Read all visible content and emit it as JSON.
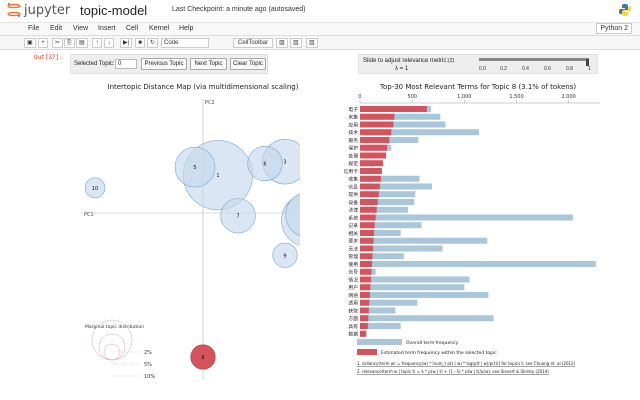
{
  "header": {
    "brand": "jupyter",
    "notebook_title": "topic-model",
    "checkpoint": "Last Checkpoint: a minute ago (autosaved)"
  },
  "menu": {
    "items": [
      "File",
      "Edit",
      "View",
      "Insert",
      "Cell",
      "Kernel",
      "Help"
    ],
    "kernel": "Python 2"
  },
  "toolbar": {
    "icons": [
      "save-icon",
      "add-icon",
      "cut-icon",
      "copy-icon",
      "paste-icon",
      "move-up-icon",
      "move-down-icon",
      "run-icon",
      "stop-icon",
      "restart-icon"
    ],
    "cell_type": "Code",
    "celltoolbar_label": "CellToolbar",
    "extra_icons": [
      "chart-icon",
      "chart-icon",
      "chart-icon"
    ]
  },
  "cell": {
    "prompt": "Out[37]:"
  },
  "controls": {
    "selected_topic_label": "Selected Topic:",
    "selected_topic_value": "0",
    "prev_button": "Previous Topic",
    "next_button": "Next Topic",
    "clear_button": "Clear Topic",
    "slider_label": "Slide to adjust relevance metric:",
    "slider_note": "(2)",
    "lambda_text": "λ = 1",
    "slider_value": 1,
    "slider_ticks": [
      "0.0",
      "0.2",
      "0.4",
      "0.6",
      "0.8",
      "1"
    ]
  },
  "chart_data": [
    {
      "type": "scatter",
      "title": "Intertopic Distance Map (via multidimensional scaling)",
      "xlabel": "PC1",
      "ylabel": "PC2",
      "topics": [
        {
          "id": "1",
          "x": 0.15,
          "y": 0.42,
          "size": 12
        },
        {
          "id": "2",
          "x": 1.05,
          "y": -0.08,
          "size": 7
        },
        {
          "id": "3",
          "x": 0.82,
          "y": 0.57,
          "size": 5
        },
        {
          "id": "4",
          "x": 1.05,
          "y": -0.02,
          "size": 5
        },
        {
          "id": "5",
          "x": -0.08,
          "y": 0.51,
          "size": 4
        },
        {
          "id": "6",
          "x": 0.62,
          "y": 0.55,
          "size": 3
        },
        {
          "id": "7",
          "x": 0.35,
          "y": -0.03,
          "size": 3
        },
        {
          "id": "8",
          "x": 0.0,
          "y": -1.6,
          "size": 1.5,
          "selected": true
        },
        {
          "id": "9",
          "x": 0.82,
          "y": -0.47,
          "size": 1.5
        },
        {
          "id": "10",
          "x": -1.08,
          "y": 0.28,
          "size": 1
        }
      ],
      "legend": {
        "title": "Marginal topic distribution",
        "items": [
          "2%",
          "5%",
          "10%"
        ]
      }
    },
    {
      "type": "bar",
      "title": "Top-30 Most Relevant Terms for Topic 8 (3.1% of tokens)",
      "ticks": [
        "0",
        "500",
        "1,000",
        "1,500",
        "2,000"
      ],
      "xlim": [
        0,
        2300
      ],
      "categories": [
        "电子",
        "采集",
        "应用",
        "技术",
        "服务",
        "保护",
        "处理",
        "规定",
        "信用卡",
        "收集",
        "信息",
        "提供",
        "设备",
        "法律",
        "系统",
        "记录",
        "相关",
        "要求",
        "无法",
        "管理",
        "使用",
        "信号",
        "情况",
        "用户",
        "网络",
        "适用",
        "获取",
        "方面",
        "具有",
        "数据"
      ],
      "series": [
        {
          "name": "Overall term frequency",
          "values": [
            680,
            770,
            820,
            1140,
            560,
            300,
            180,
            120,
            110,
            570,
            690,
            530,
            520,
            460,
            2040,
            590,
            390,
            1220,
            790,
            420,
            2260,
            150,
            1050,
            1000,
            1230,
            550,
            340,
            1280,
            390,
            60
          ]
        },
        {
          "name": "Estimated term frequency within the selected topic",
          "values": [
            640,
            330,
            320,
            300,
            280,
            260,
            250,
            220,
            210,
            200,
            190,
            180,
            170,
            160,
            150,
            140,
            135,
            130,
            125,
            120,
            115,
            110,
            105,
            100,
            95,
            90,
            85,
            80,
            75,
            60
          ]
        }
      ],
      "notes": [
        "1. saliency(term w) = frequency(w) * [sum_t p(t | w) * log(p(t | w)/p(t))] for topics t; see Chuang et. al (2012)",
        "2. relevance(term w | topic t) = λ * p(w | t) + (1 - λ) * p(w | t)/p(w); see Sievert & Shirley (2014)"
      ]
    }
  ],
  "colors": {
    "bubble_fill": "#c6d9ec",
    "bubble_stroke": "#7fa7cf",
    "selected_fill": "#d4545e",
    "overall_bar": "#a9c6db",
    "topic_bar": "#d4545e"
  }
}
